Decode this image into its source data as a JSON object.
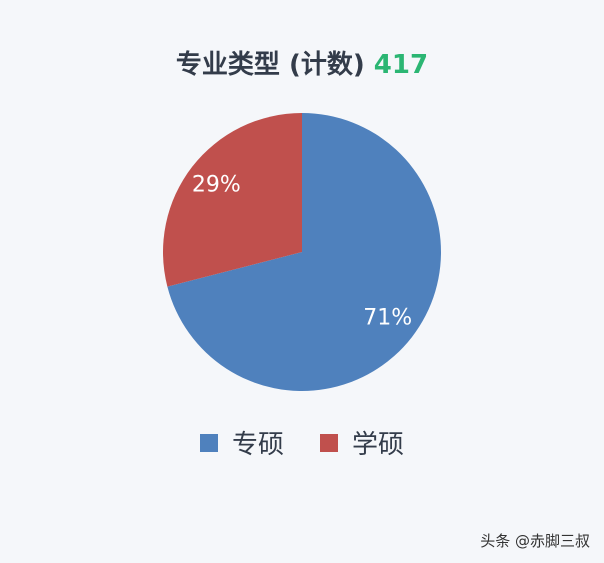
{
  "chart_data": {
    "type": "pie",
    "title": "专业类型 (计数)",
    "title_count": "417",
    "title_count_color": "#2bb673",
    "slices": [
      {
        "name": "专硕",
        "value": 71,
        "label": "71%",
        "color": "#4f81bd"
      },
      {
        "name": "学硕",
        "value": 29,
        "label": "29%",
        "color": "#c0504d"
      }
    ],
    "legend_placement": "bottom"
  },
  "watermark": "头条 @赤脚三叔"
}
